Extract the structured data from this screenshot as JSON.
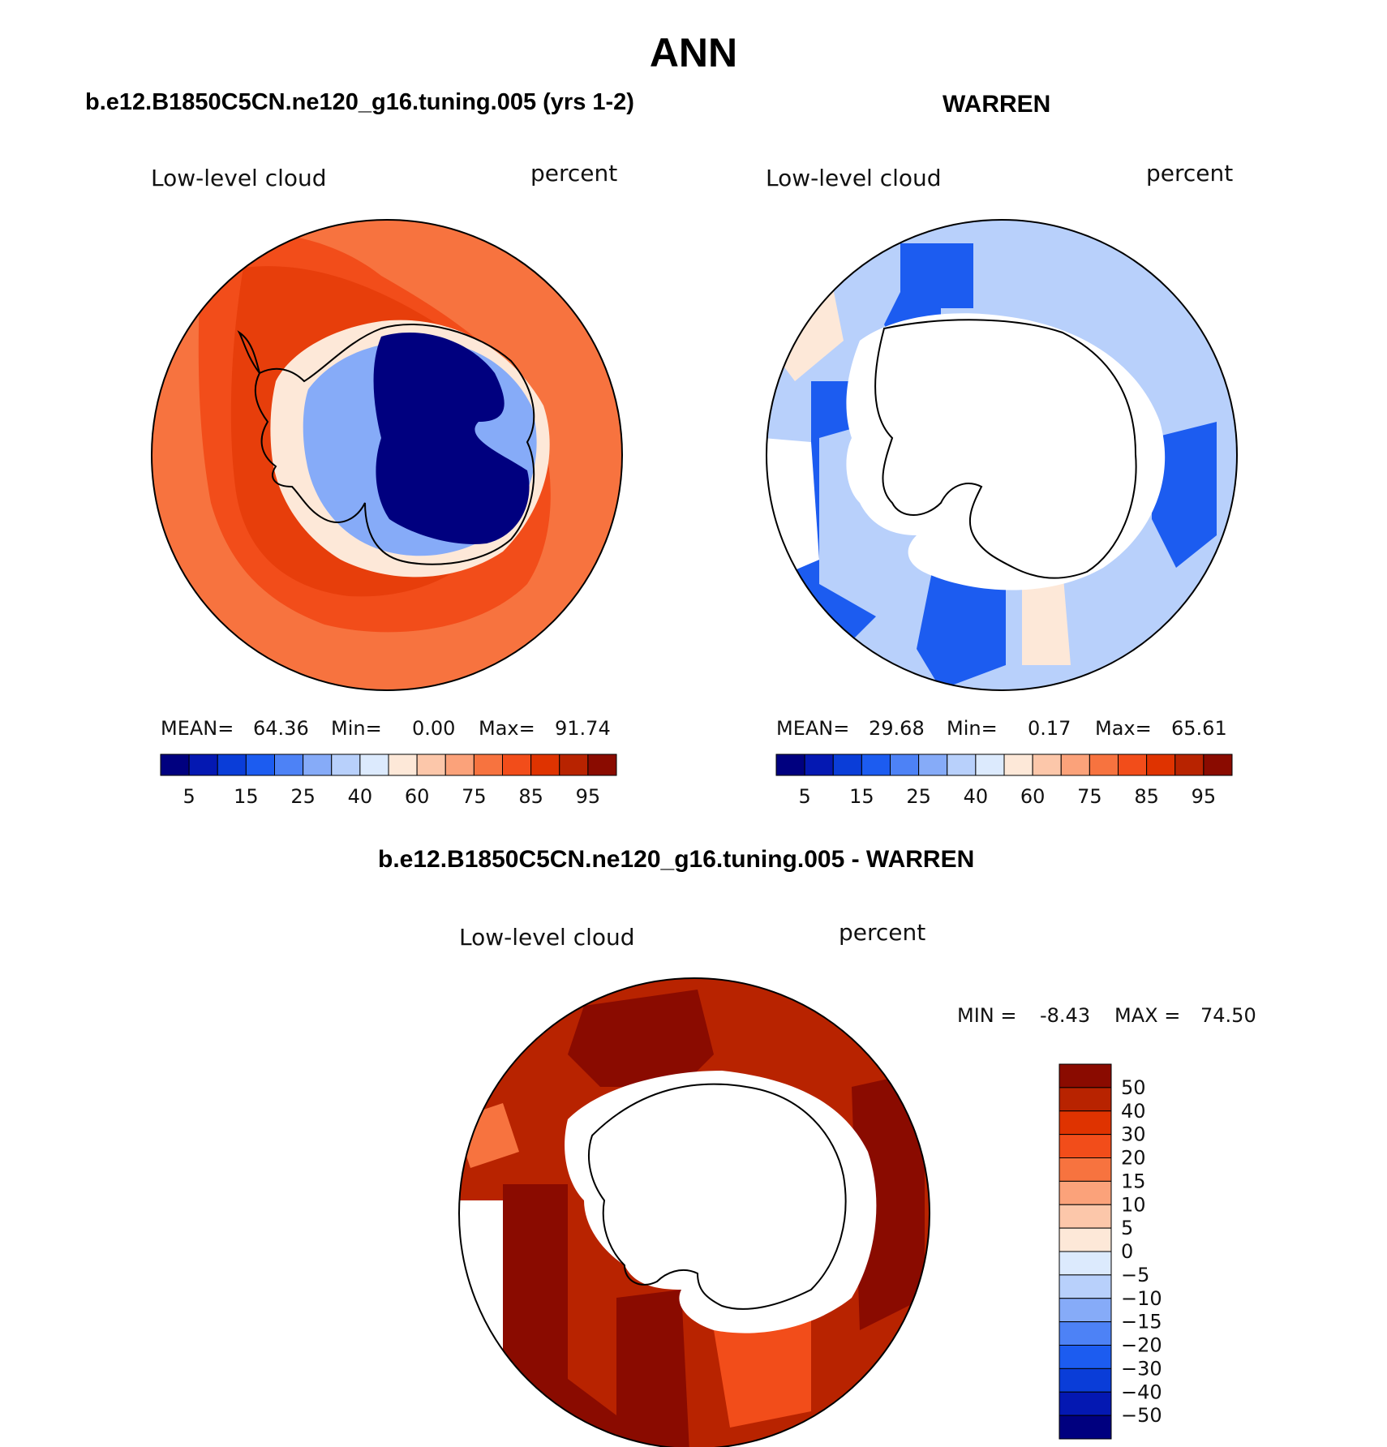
{
  "page_title": "ANN",
  "colors": {
    "diverging_15": [
      "#00007f",
      "#0418b2",
      "#0a3dd8",
      "#1c5cf0",
      "#4d82f6",
      "#86abf8",
      "#b8d0fb",
      "#dceafd",
      "#fde8d8",
      "#fcc7aa",
      "#fba27a",
      "#f7733f",
      "#f24d1a",
      "#df3300",
      "#b82300",
      "#8a0b00"
    ],
    "diff_16": [
      "#00007f",
      "#0418b2",
      "#0a3dd8",
      "#1c5cf0",
      "#4d82f6",
      "#86abf8",
      "#b8d0fb",
      "#dceafd",
      "#fde8d8",
      "#fcc7aa",
      "#fba27a",
      "#f7733f",
      "#f24d1a",
      "#df3300",
      "#b82300",
      "#8a0b00"
    ],
    "coastline": "#000000",
    "missing": "#ffffff"
  },
  "chart_data": [
    {
      "type": "heatmap",
      "projection": "south polar stereographic",
      "title": "b.e12.B1850C5CN.ne120_g16.tuning.005 (yrs 1-2)",
      "variable": "Low-level cloud",
      "units": "percent",
      "stats": {
        "mean_label": "MEAN=",
        "mean": "64.36",
        "min_label": "Min=",
        "min": "0.00",
        "max_label": "Max=",
        "max": "91.74"
      },
      "colorbar": {
        "orientation": "horizontal",
        "tick_labels": [
          "5",
          "15",
          "25",
          "40",
          "60",
          "75",
          "85",
          "95"
        ],
        "bins": 16
      },
      "field": {
        "antarctic_interior": "5",
        "coastal_ring": "40-60",
        "ocean_midlatitude": "85",
        "outer_ring": "75"
      }
    },
    {
      "type": "heatmap",
      "projection": "south polar stereographic",
      "title": "WARREN",
      "variable": "Low-level cloud",
      "units": "percent",
      "stats": {
        "mean_label": "MEAN=",
        "mean": "29.68",
        "min_label": "Min=",
        "min": "0.17",
        "max_label": "Max=",
        "max": "65.61"
      },
      "colorbar": {
        "orientation": "horizontal",
        "tick_labels": [
          "5",
          "15",
          "25",
          "40",
          "60",
          "75",
          "85",
          "95"
        ],
        "bins": 16
      },
      "field": {
        "land": "missing",
        "ocean": "15-40"
      }
    },
    {
      "type": "heatmap",
      "projection": "south polar stereographic",
      "title": "b.e12.B1850C5CN.ne120_g16.tuning.005 - WARREN",
      "variable": "Low-level cloud",
      "units": "percent",
      "stats": {
        "min_label": "MIN =",
        "min": "-8.43",
        "max_label": "MAX =",
        "max": "74.50"
      },
      "colorbar": {
        "orientation": "vertical",
        "tick_labels": [
          "50",
          "40",
          "30",
          "20",
          "15",
          "10",
          "5",
          "0",
          "−5",
          "−10",
          "−15",
          "−20",
          "−30",
          "−40",
          "−50"
        ],
        "bins": 16
      },
      "field": {
        "land": "missing",
        "ocean": "30-50+"
      }
    }
  ]
}
